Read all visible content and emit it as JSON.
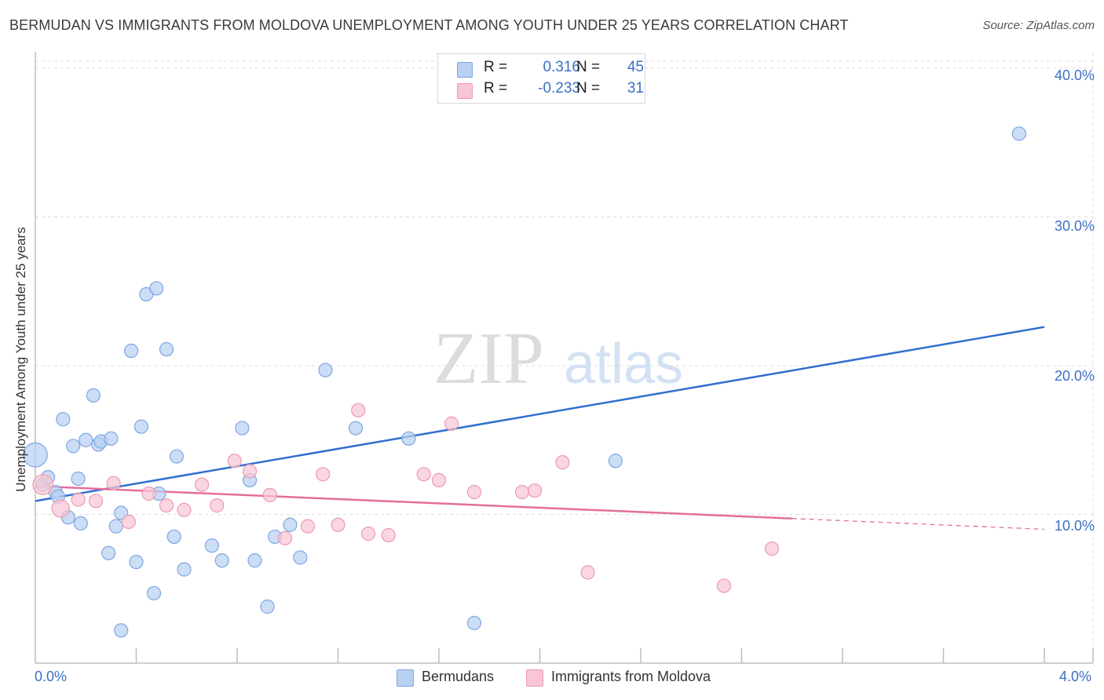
{
  "header": {
    "title": "BERMUDAN VS IMMIGRANTS FROM MOLDOVA UNEMPLOYMENT AMONG YOUTH UNDER 25 YEARS CORRELATION CHART",
    "source": "Source: ZipAtlas.com"
  },
  "watermark": {
    "zip": "ZIP",
    "atlas": "atlas"
  },
  "legend": {
    "rows": [
      {
        "r_label": "R =",
        "r_value": "0.316",
        "n_label": "N =",
        "n_value": "45",
        "color": "#b8d0f2",
        "border": "#7fa7e0"
      },
      {
        "r_label": "R =",
        "r_value": "-0.233",
        "n_label": "N =",
        "n_value": "31",
        "color": "#f8c6d4",
        "border": "#ec9ab2"
      }
    ]
  },
  "bottom_legend": {
    "series1": "Bermudans",
    "series2": "Immigrants from Moldova"
  },
  "chart_data": {
    "type": "scatter",
    "title": "BERMUDAN VS IMMIGRANTS FROM MOLDOVA UNEMPLOYMENT AMONG YOUTH UNDER 25 YEARS CORRELATION CHART",
    "xlabel": "",
    "ylabel": "Unemployment Among Youth under 25 years",
    "xlim": [
      0,
      4
    ],
    "ylim": [
      0,
      41
    ],
    "x_tick_labels": [
      "0.0%",
      "4.0%"
    ],
    "y_ticks": [
      10,
      20,
      30,
      40
    ],
    "y_tick_labels": [
      "10.0%",
      "20.0%",
      "30.0%",
      "40.0%"
    ],
    "grid": true,
    "series": [
      {
        "name": "Bermudans",
        "color": "#7fa7e0",
        "fill": "#b8d0f2",
        "trend": {
          "x0": 0.0,
          "y0": 10.9,
          "x1": 4.0,
          "y1": 22.6,
          "dashed_from": 4.0,
          "color": "#2f6fd0"
        },
        "points": [
          [
            0.0,
            14.0,
            1.8
          ],
          [
            0.03,
            12.0,
            1
          ],
          [
            0.05,
            12.5,
            1
          ],
          [
            0.08,
            11.5,
            1
          ],
          [
            0.09,
            11.2,
            1
          ],
          [
            0.13,
            9.8,
            1
          ],
          [
            0.15,
            14.6,
            1
          ],
          [
            0.17,
            12.4,
            1
          ],
          [
            0.18,
            9.4,
            1
          ],
          [
            0.11,
            16.4,
            1
          ],
          [
            0.2,
            15.0,
            1
          ],
          [
            0.23,
            18.0,
            1
          ],
          [
            0.25,
            14.7,
            1
          ],
          [
            0.26,
            14.9,
            1
          ],
          [
            0.3,
            15.1,
            1
          ],
          [
            0.29,
            7.4,
            1
          ],
          [
            0.32,
            9.2,
            1
          ],
          [
            0.34,
            10.1,
            1
          ],
          [
            0.34,
            2.2,
            1
          ],
          [
            0.38,
            21.0,
            1
          ],
          [
            0.4,
            6.8,
            1
          ],
          [
            0.42,
            15.9,
            1
          ],
          [
            0.44,
            24.8,
            1
          ],
          [
            0.47,
            4.7,
            1
          ],
          [
            0.48,
            25.2,
            1
          ],
          [
            0.49,
            11.4,
            1
          ],
          [
            0.52,
            21.1,
            1
          ],
          [
            0.55,
            8.5,
            1
          ],
          [
            0.56,
            13.9,
            1
          ],
          [
            0.59,
            6.3,
            1
          ],
          [
            0.7,
            7.9,
            1
          ],
          [
            0.74,
            6.9,
            1
          ],
          [
            0.82,
            15.8,
            1
          ],
          [
            0.85,
            12.3,
            1
          ],
          [
            0.87,
            6.9,
            1
          ],
          [
            0.92,
            3.8,
            1
          ],
          [
            0.95,
            8.5,
            1
          ],
          [
            1.01,
            9.3,
            1
          ],
          [
            1.05,
            7.1,
            1
          ],
          [
            1.15,
            19.7,
            1
          ],
          [
            1.27,
            15.8,
            1
          ],
          [
            1.48,
            15.1,
            1
          ],
          [
            1.74,
            2.7,
            1
          ],
          [
            2.3,
            13.6,
            1
          ],
          [
            3.9,
            35.6,
            1
          ]
        ]
      },
      {
        "name": "Immigrants from Moldova",
        "color": "#ec9ab2",
        "fill": "#f8c6d4",
        "trend": {
          "x0": 0.0,
          "y0": 11.9,
          "x1": 4.0,
          "y1": 9.0,
          "dashed_from": 3.0,
          "color": "#e46f98"
        },
        "points": [
          [
            0.03,
            12.0,
            1.5
          ],
          [
            0.1,
            10.4,
            1.3
          ],
          [
            0.17,
            11.0,
            1
          ],
          [
            0.24,
            10.9,
            1
          ],
          [
            0.31,
            12.1,
            1
          ],
          [
            0.37,
            9.5,
            1
          ],
          [
            0.45,
            11.4,
            1
          ],
          [
            0.52,
            10.6,
            1
          ],
          [
            0.59,
            10.3,
            1
          ],
          [
            0.66,
            12.0,
            1
          ],
          [
            0.72,
            10.6,
            1
          ],
          [
            0.79,
            13.6,
            1
          ],
          [
            0.85,
            12.9,
            1
          ],
          [
            0.93,
            11.3,
            1
          ],
          [
            0.99,
            8.4,
            1
          ],
          [
            1.08,
            9.2,
            1
          ],
          [
            1.14,
            12.7,
            1
          ],
          [
            1.2,
            9.3,
            1
          ],
          [
            1.28,
            17.0,
            1
          ],
          [
            1.32,
            8.7,
            1
          ],
          [
            1.4,
            8.6,
            1
          ],
          [
            1.54,
            12.7,
            1
          ],
          [
            1.6,
            12.3,
            1
          ],
          [
            1.65,
            16.1,
            1
          ],
          [
            1.74,
            11.5,
            1
          ],
          [
            1.93,
            11.5,
            1
          ],
          [
            1.98,
            11.6,
            1
          ],
          [
            2.09,
            13.5,
            1
          ],
          [
            2.19,
            6.1,
            1
          ],
          [
            2.73,
            5.2,
            1
          ],
          [
            2.92,
            7.7,
            1
          ]
        ]
      }
    ]
  }
}
